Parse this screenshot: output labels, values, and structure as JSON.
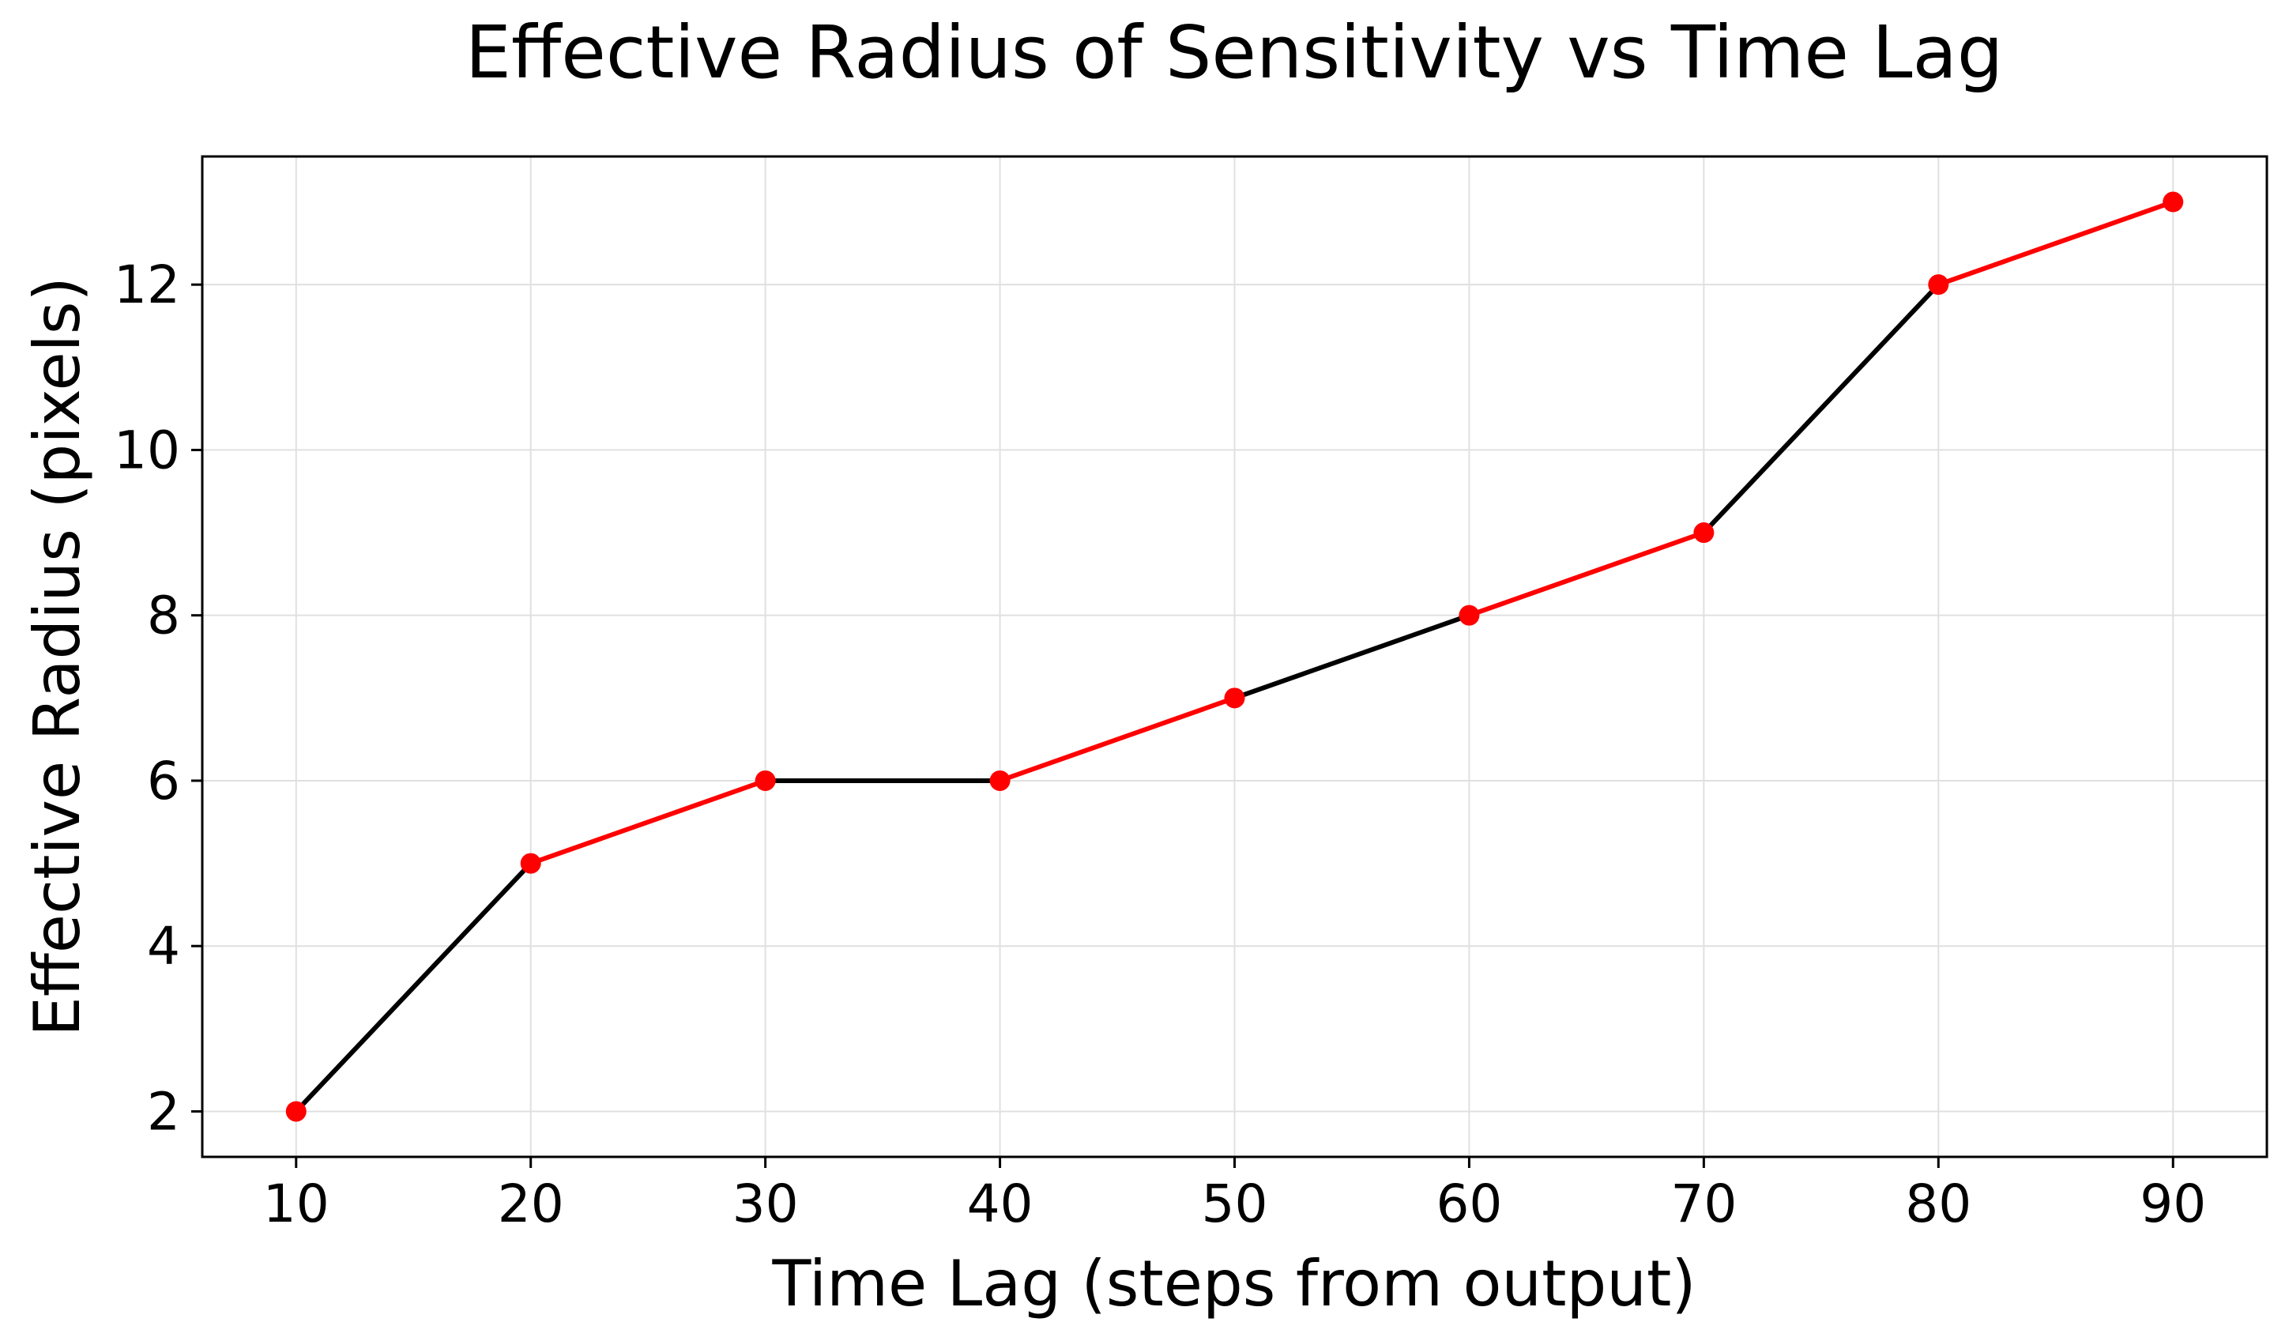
{
  "chart_data": {
    "type": "line",
    "title": "Effective Radius of Sensitivity vs Time Lag",
    "xlabel": "Time Lag (steps from output)",
    "ylabel": "Effective Radius (pixels)",
    "x": [
      10,
      20,
      30,
      40,
      50,
      60,
      70,
      80,
      90
    ],
    "y": [
      2,
      5,
      6,
      6,
      7,
      8,
      9,
      12,
      13
    ],
    "segment_colors": [
      "#000000",
      "#ff0000",
      "#000000",
      "#ff0000",
      "#000000",
      "#ff0000",
      "#000000",
      "#ff0000"
    ],
    "marker_color": "#ff0000",
    "xticks": [
      10,
      20,
      30,
      40,
      50,
      60,
      70,
      80,
      90
    ],
    "yticks": [
      2,
      4,
      6,
      8,
      10,
      12
    ],
    "xlim": [
      6,
      94
    ],
    "ylim": [
      1.45,
      13.55
    ],
    "grid": true,
    "grid_color": "#e0e0e0"
  }
}
